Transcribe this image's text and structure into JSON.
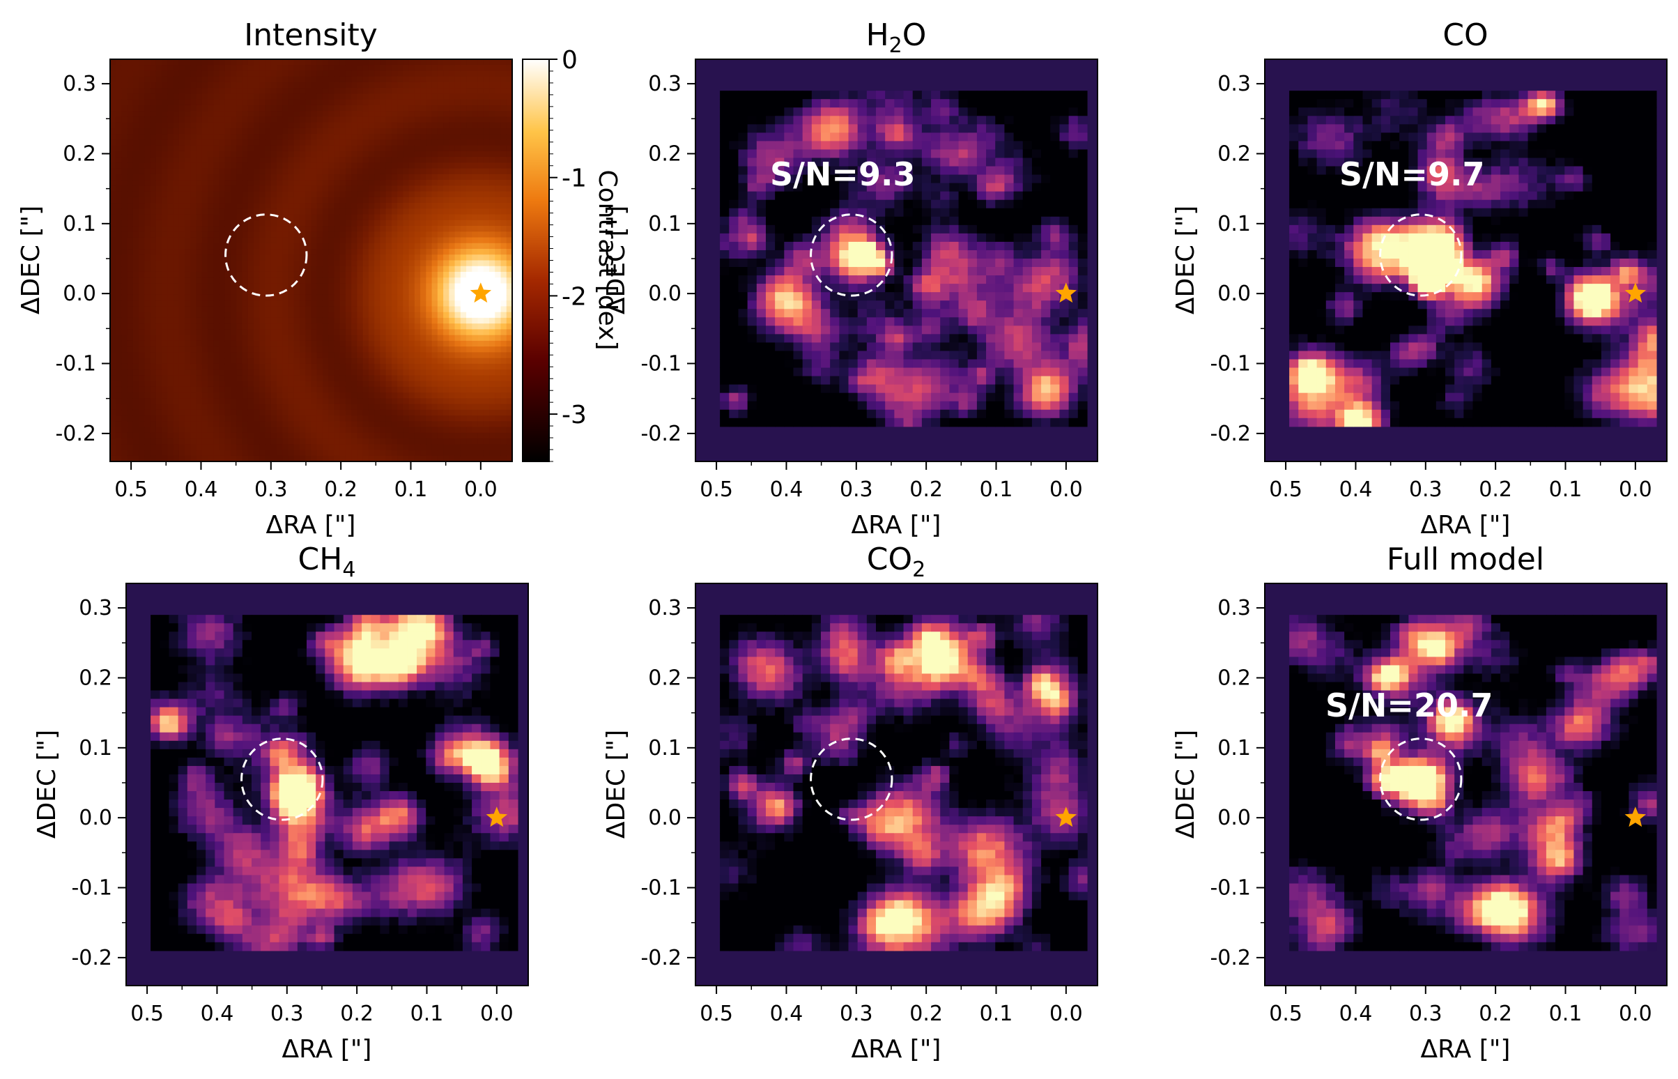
{
  "chart_data": [
    {
      "type": "heatmap",
      "title": "Intensity",
      "xlabel": "ΔRA [\"]",
      "ylabel": "ΔDEC [\"]",
      "xlim": [
        0.53,
        -0.045
      ],
      "ylim": [
        -0.24,
        0.335
      ],
      "xticks": [
        "0.5",
        "0.4",
        "0.3",
        "0.2",
        "0.1",
        "0.0"
      ],
      "yticks": [
        "0.3",
        "0.2",
        "0.1",
        "0.0",
        "-0.1",
        "-0.2"
      ],
      "colormap": "afmhot",
      "colorbar": {
        "label": "Contrast [dex]",
        "range": [
          -3.4,
          0
        ],
        "ticks": [
          "0",
          "-1",
          "-2",
          "-3"
        ]
      },
      "star": {
        "x": 0.0,
        "y": 0.0
      },
      "planet_circle": {
        "x": 0.307,
        "y": 0.055,
        "r": 0.058
      },
      "snr_label": ""
    },
    {
      "type": "heatmap",
      "title_main": "H",
      "title_sub": "2",
      "title_tail": "O",
      "xlabel": "ΔRA [\"]",
      "ylabel": "ΔDEC [\"]",
      "xlim": [
        0.53,
        -0.045
      ],
      "ylim": [
        -0.24,
        0.335
      ],
      "xticks": [
        "0.5",
        "0.4",
        "0.3",
        "0.2",
        "0.1",
        "0.0"
      ],
      "yticks": [
        "0.3",
        "0.2",
        "0.1",
        "0.0",
        "-0.1",
        "-0.2"
      ],
      "colormap": "magma",
      "star": {
        "x": 0.0,
        "y": 0.0
      },
      "planet_circle": {
        "x": 0.307,
        "y": 0.055,
        "r": 0.058
      },
      "snr_label": "S/N=9.3",
      "planet_peak": 0.95
    },
    {
      "type": "heatmap",
      "title_main": "CO",
      "title_sub": "",
      "title_tail": "",
      "xlabel": "ΔRA [\"]",
      "ylabel": "ΔDEC [\"]",
      "xlim": [
        0.53,
        -0.045
      ],
      "ylim": [
        -0.24,
        0.335
      ],
      "xticks": [
        "0.5",
        "0.4",
        "0.3",
        "0.2",
        "0.1",
        "0.0"
      ],
      "yticks": [
        "0.3",
        "0.2",
        "0.1",
        "0.0",
        "-0.1",
        "-0.2"
      ],
      "colormap": "magma",
      "star": {
        "x": 0.0,
        "y": 0.0
      },
      "planet_circle": {
        "x": 0.307,
        "y": 0.055,
        "r": 0.058
      },
      "snr_label": "S/N=9.7",
      "planet_peak": 1.0
    },
    {
      "type": "heatmap",
      "title_main": "CH",
      "title_sub": "4",
      "title_tail": "",
      "xlabel": "ΔRA [\"]",
      "ylabel": "ΔDEC [\"]",
      "xlim": [
        0.53,
        -0.045
      ],
      "ylim": [
        -0.24,
        0.335
      ],
      "xticks": [
        "0.5",
        "0.4",
        "0.3",
        "0.2",
        "0.1",
        "0.0"
      ],
      "yticks": [
        "0.3",
        "0.2",
        "0.1",
        "0.0",
        "-0.1",
        "-0.2"
      ],
      "colormap": "magma",
      "star": {
        "x": 0.0,
        "y": 0.0
      },
      "planet_circle": {
        "x": 0.307,
        "y": 0.055,
        "r": 0.058
      },
      "snr_label": "",
      "planet_peak": 0.35
    },
    {
      "type": "heatmap",
      "title_main": "CO",
      "title_sub": "2",
      "title_tail": "",
      "xlabel": "ΔRA [\"]",
      "ylabel": "ΔDEC [\"]",
      "xlim": [
        0.53,
        -0.045
      ],
      "ylim": [
        -0.24,
        0.335
      ],
      "xticks": [
        "0.5",
        "0.4",
        "0.3",
        "0.2",
        "0.1",
        "0.0"
      ],
      "yticks": [
        "0.3",
        "0.2",
        "0.1",
        "0.0",
        "-0.1",
        "-0.2"
      ],
      "colormap": "magma",
      "star": {
        "x": 0.0,
        "y": 0.0
      },
      "planet_circle": {
        "x": 0.307,
        "y": 0.055,
        "r": 0.058
      },
      "snr_label": "",
      "planet_peak": 0.0
    },
    {
      "type": "heatmap",
      "title_main": "Full model",
      "title_sub": "",
      "title_tail": "",
      "xlabel": "ΔRA [\"]",
      "ylabel": "ΔDEC [\"]",
      "xlim": [
        0.53,
        -0.045
      ],
      "ylim": [
        -0.24,
        0.335
      ],
      "xticks": [
        "0.5",
        "0.4",
        "0.3",
        "0.2",
        "0.1",
        "0.0"
      ],
      "yticks": [
        "0.3",
        "0.2",
        "0.1",
        "0.0",
        "-0.1",
        "-0.2"
      ],
      "colormap": "magma",
      "star": {
        "x": 0.0,
        "y": 0.0
      },
      "planet_circle": {
        "x": 0.307,
        "y": 0.055,
        "r": 0.058
      },
      "snr_label": "S/N=20.7",
      "planet_peak": 1.0
    }
  ],
  "colors": {
    "star": "#ffa500",
    "circle": "#ffffff",
    "frame": "#000000",
    "padding": "#28124f"
  }
}
